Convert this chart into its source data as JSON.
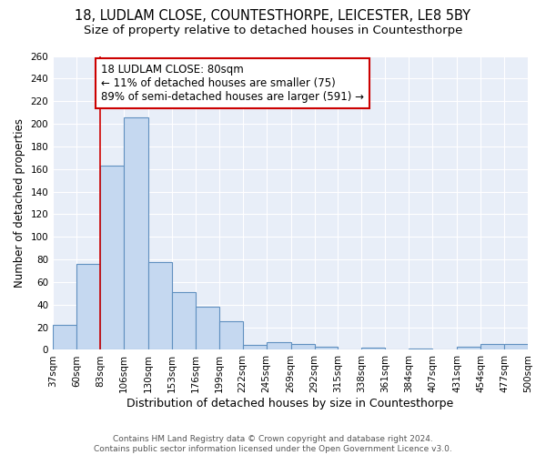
{
  "title": "18, LUDLAM CLOSE, COUNTESTHORPE, LEICESTER, LE8 5BY",
  "subtitle": "Size of property relative to detached houses in Countesthorpe",
  "xlabel": "Distribution of detached houses by size in Countesthorpe",
  "ylabel": "Number of detached properties",
  "bar_left_edges": [
    37,
    60,
    83,
    106,
    130,
    153,
    176,
    199,
    222,
    245,
    269,
    292,
    315,
    338,
    361,
    384,
    407,
    431,
    454,
    477
  ],
  "bar_widths": [
    23,
    23,
    23,
    24,
    23,
    23,
    23,
    23,
    23,
    24,
    23,
    23,
    23,
    23,
    23,
    23,
    24,
    23,
    23,
    23
  ],
  "bar_heights": [
    22,
    76,
    163,
    206,
    78,
    51,
    38,
    25,
    4,
    7,
    5,
    3,
    0,
    2,
    0,
    1,
    0,
    3,
    5,
    5
  ],
  "xlabels": [
    "37sqm",
    "60sqm",
    "83sqm",
    "106sqm",
    "130sqm",
    "153sqm",
    "176sqm",
    "199sqm",
    "222sqm",
    "245sqm",
    "269sqm",
    "292sqm",
    "315sqm",
    "338sqm",
    "361sqm",
    "384sqm",
    "407sqm",
    "431sqm",
    "454sqm",
    "477sqm",
    "500sqm"
  ],
  "xlim": [
    37,
    500
  ],
  "ylim": [
    0,
    260
  ],
  "yticks": [
    0,
    20,
    40,
    60,
    80,
    100,
    120,
    140,
    160,
    180,
    200,
    220,
    240,
    260
  ],
  "bar_color": "#c5d8f0",
  "bar_edge_color": "#6090c0",
  "bar_linewidth": 0.8,
  "vline_x": 83,
  "vline_color": "#cc0000",
  "vline_linewidth": 1.2,
  "annotation_text": "18 LUDLAM CLOSE: 80sqm\n← 11% of detached houses are smaller (75)\n89% of semi-detached houses are larger (591) →",
  "annotation_box_color": "#ffffff",
  "annotation_box_edge": "#cc0000",
  "bg_color": "#ffffff",
  "plot_bg_color": "#e8eef8",
  "grid_color": "#ffffff",
  "footer": "Contains HM Land Registry data © Crown copyright and database right 2024.\nContains public sector information licensed under the Open Government Licence v3.0.",
  "title_fontsize": 10.5,
  "subtitle_fontsize": 9.5,
  "xlabel_fontsize": 9,
  "ylabel_fontsize": 8.5,
  "tick_fontsize": 7.5,
  "annot_fontsize": 8.5,
  "footer_fontsize": 6.5
}
